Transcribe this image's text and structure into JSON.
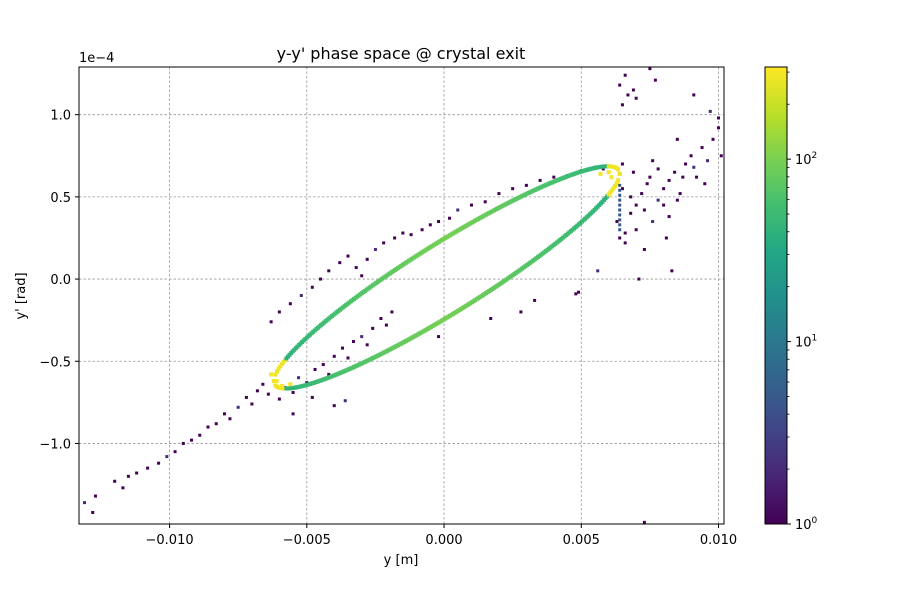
{
  "chart_data": {
    "type": "heatmap",
    "title": "y-y' phase space @ crystal exit",
    "xlabel": "y [m]",
    "ylabel": "y' [rad]",
    "y_offset_text": "1e−4",
    "xlim": [
      -0.0133,
      0.0102
    ],
    "ylim": [
      -1.49,
      1.29
    ],
    "x_scale_unit": "m",
    "y_scale_unit": "1e-4 rad",
    "grid": true,
    "grid_style": "dashed",
    "colormap": "viridis",
    "colorbar": {
      "scale": "log",
      "range": [
        1,
        320
      ],
      "tick_labels": [
        {
          "value": 1,
          "label": "10",
          "exp": "0"
        },
        {
          "value": 10,
          "label": "10",
          "exp": "1"
        },
        {
          "value": 100,
          "label": "10",
          "exp": "2"
        }
      ]
    },
    "x_ticks": [
      {
        "value": -0.01,
        "label": "−0.010"
      },
      {
        "value": -0.005,
        "label": "−0.005"
      },
      {
        "value": 0.0,
        "label": "0.000"
      },
      {
        "value": 0.005,
        "label": "0.005"
      },
      {
        "value": 0.01,
        "label": "0.010"
      }
    ],
    "y_ticks": [
      {
        "value": -1.0,
        "label": "−1.0"
      },
      {
        "value": -0.5,
        "label": "−0.5"
      },
      {
        "value": 0.0,
        "label": "0.0"
      },
      {
        "value": 0.5,
        "label": "0.5"
      },
      {
        "value": 1.0,
        "label": "1.0"
      }
    ],
    "ellipse": {
      "center": [
        0.0001,
        0.0
      ],
      "x_semi_axis": 0.0063,
      "slope": 0.1,
      "y_width": 0.245,
      "peak_counts": 300
    },
    "stray_cells": [
      [
        -0.0131,
        -1.36
      ],
      [
        -0.0128,
        -1.42
      ],
      [
        -0.0127,
        -1.32
      ],
      [
        -0.012,
        -1.23
      ],
      [
        -0.0117,
        -1.27
      ],
      [
        -0.0115,
        -1.2
      ],
      [
        -0.0112,
        -1.18
      ],
      [
        -0.0108,
        -1.15
      ],
      [
        -0.0104,
        -1.12
      ],
      [
        -0.0101,
        -1.08
      ],
      [
        -0.0098,
        -1.05
      ],
      [
        -0.0095,
        -1.0
      ],
      [
        -0.0092,
        -0.98
      ],
      [
        -0.0089,
        -0.95
      ],
      [
        -0.0086,
        -0.9
      ],
      [
        -0.0083,
        -0.88
      ],
      [
        -0.008,
        -0.82
      ],
      [
        -0.0078,
        -0.85
      ],
      [
        -0.0075,
        -0.78
      ],
      [
        -0.0072,
        -0.72
      ],
      [
        -0.007,
        -0.76
      ],
      [
        -0.0068,
        -0.68
      ],
      [
        -0.0066,
        -0.64
      ],
      [
        -0.0064,
        -0.7
      ],
      [
        -0.006,
        -0.73
      ],
      [
        -0.0058,
        -0.66
      ],
      [
        -0.0055,
        -0.69
      ],
      [
        -0.0053,
        -0.6
      ],
      [
        -0.005,
        -0.63
      ],
      [
        -0.0047,
        -0.55
      ],
      [
        -0.0044,
        -0.52
      ],
      [
        -0.0042,
        -0.58
      ],
      [
        -0.004,
        -0.47
      ],
      [
        -0.0037,
        -0.42
      ],
      [
        -0.0035,
        -0.48
      ],
      [
        -0.0033,
        -0.38
      ],
      [
        -0.003,
        -0.35
      ],
      [
        -0.0028,
        -0.4
      ],
      [
        -0.0026,
        -0.3
      ],
      [
        -0.0023,
        -0.24
      ],
      [
        -0.0021,
        -0.28
      ],
      [
        -0.0019,
        -0.2
      ],
      [
        -0.006,
        -0.2
      ],
      [
        -0.0063,
        -0.26
      ],
      [
        -0.0056,
        -0.15
      ],
      [
        -0.0052,
        -0.1
      ],
      [
        -0.0048,
        -0.05
      ],
      [
        -0.0045,
        0.0
      ],
      [
        -0.0042,
        0.05
      ],
      [
        -0.0038,
        0.1
      ],
      [
        -0.0035,
        0.14
      ],
      [
        -0.0032,
        0.07
      ],
      [
        -0.003,
        0.02
      ],
      [
        -0.0028,
        0.12
      ],
      [
        -0.0025,
        0.18
      ],
      [
        -0.0022,
        0.22
      ],
      [
        -0.0018,
        0.25
      ],
      [
        -0.0015,
        0.28
      ],
      [
        -0.0012,
        0.27
      ],
      [
        -0.0008,
        0.3
      ],
      [
        -0.0005,
        0.33
      ],
      [
        -0.0002,
        0.35
      ],
      [
        0.0002,
        0.37
      ],
      [
        0.0005,
        0.42
      ],
      [
        0.001,
        0.45
      ],
      [
        0.0015,
        0.47
      ],
      [
        0.002,
        0.52
      ],
      [
        0.0025,
        0.55
      ],
      [
        0.003,
        0.57
      ],
      [
        0.0035,
        0.6
      ],
      [
        0.004,
        0.62
      ],
      [
        0.0045,
        0.63
      ],
      [
        0.005,
        0.66
      ],
      [
        0.0055,
        0.68
      ],
      [
        0.0058,
        0.67
      ],
      [
        0.0049,
        -0.08
      ],
      [
        0.0033,
        -0.13
      ],
      [
        0.0028,
        -0.2
      ],
      [
        0.0017,
        -0.24
      ],
      [
        -0.0002,
        -0.35
      ],
      [
        -0.004,
        -0.77
      ],
      [
        -0.0036,
        -0.74
      ],
      [
        -0.0048,
        -0.72
      ],
      [
        -0.0055,
        -0.82
      ],
      [
        0.0065,
        0.55
      ],
      [
        0.0068,
        0.5
      ],
      [
        0.007,
        0.45
      ],
      [
        0.0072,
        0.52
      ],
      [
        0.0074,
        0.58
      ],
      [
        0.0075,
        0.62
      ],
      [
        0.0078,
        0.48
      ],
      [
        0.008,
        0.55
      ],
      [
        0.0082,
        0.6
      ],
      [
        0.0084,
        0.65
      ],
      [
        0.0086,
        0.52
      ],
      [
        0.0088,
        0.7
      ],
      [
        0.009,
        0.75
      ],
      [
        0.0092,
        0.62
      ],
      [
        0.0094,
        0.8
      ],
      [
        0.0096,
        0.72
      ],
      [
        0.0098,
        0.85
      ],
      [
        0.01,
        0.92
      ],
      [
        0.0101,
        0.75
      ],
      [
        0.0063,
        0.35
      ],
      [
        0.0066,
        0.28
      ],
      [
        0.0068,
        0.4
      ],
      [
        0.007,
        0.3
      ],
      [
        0.0073,
        0.42
      ],
      [
        0.0076,
        0.35
      ],
      [
        0.008,
        0.45
      ],
      [
        0.0082,
        0.38
      ],
      [
        0.0085,
        0.48
      ],
      [
        0.0065,
        0.7
      ],
      [
        0.0069,
        0.65
      ],
      [
        0.0076,
        0.72
      ],
      [
        0.0078,
        0.67
      ],
      [
        0.0087,
        0.62
      ],
      [
        0.0091,
        0.68
      ],
      [
        0.0095,
        0.58
      ],
      [
        0.0064,
        0.25
      ],
      [
        0.0066,
        0.22
      ],
      [
        0.0081,
        0.25
      ],
      [
        0.0073,
        0.18
      ],
      [
        0.0083,
        0.05
      ],
      [
        0.0071,
        0.0
      ],
      [
        0.0048,
        -0.09
      ],
      [
        0.0056,
        0.05
      ],
      [
        0.0064,
        1.18
      ],
      [
        0.0066,
        1.24
      ],
      [
        0.0067,
        1.12
      ],
      [
        0.0069,
        1.15
      ],
      [
        0.007,
        1.1
      ],
      [
        0.0065,
        1.06
      ],
      [
        0.0077,
        1.21
      ],
      [
        0.0091,
        1.12
      ],
      [
        0.0097,
        1.02
      ],
      [
        0.01,
        0.98
      ],
      [
        0.0085,
        0.85
      ],
      [
        0.0075,
        1.28
      ],
      [
        0.0073,
        -1.48
      ]
    ]
  }
}
